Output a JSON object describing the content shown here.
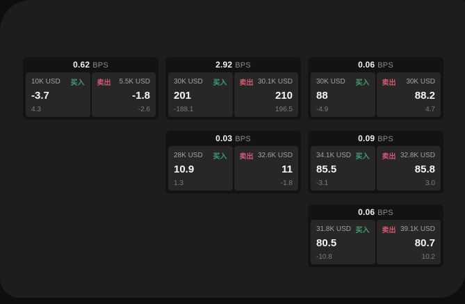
{
  "labels": {
    "buy": "买入",
    "sell": "卖出",
    "bps_suffix": "BPS"
  },
  "colors": {
    "buy_green": "#3f9e72",
    "sell_red": "#d15a6e",
    "panel_bg": "#272727",
    "card_bg": "#131313",
    "page_bg": "#1d1d1d"
  },
  "cards": [
    {
      "bps": "0.62",
      "buy_notional": "10K USD",
      "buy_price": "-3.7",
      "buy_sub": "4.3",
      "sell_notional": "5.5K USD",
      "sell_price": "-1.8",
      "sell_sub": "-2.6"
    },
    {
      "bps": "2.92",
      "buy_notional": "30K USD",
      "buy_price": "201",
      "buy_sub": "-188.1",
      "sell_notional": "30.1K USD",
      "sell_price": "210",
      "sell_sub": "196.5"
    },
    {
      "bps": "0.06",
      "buy_notional": "30K USD",
      "buy_price": "88",
      "buy_sub": "-4.9",
      "sell_notional": "30K USD",
      "sell_price": "88.2",
      "sell_sub": "4.7"
    },
    {
      "bps": "0.03",
      "buy_notional": "28K USD",
      "buy_price": "10.9",
      "buy_sub": "1.3",
      "sell_notional": "32.6K USD",
      "sell_price": "11",
      "sell_sub": "-1.8"
    },
    {
      "bps": "0.09",
      "buy_notional": "34.1K USD",
      "buy_price": "85.5",
      "buy_sub": "-3.1",
      "sell_notional": "32.8K USD",
      "sell_price": "85.8",
      "sell_sub": "3.0"
    },
    {
      "bps": "0.06",
      "buy_notional": "31.8K USD",
      "buy_price": "80.5",
      "buy_sub": "-10.8",
      "sell_notional": "39.1K USD",
      "sell_price": "80.7",
      "sell_sub": "10.2"
    }
  ]
}
